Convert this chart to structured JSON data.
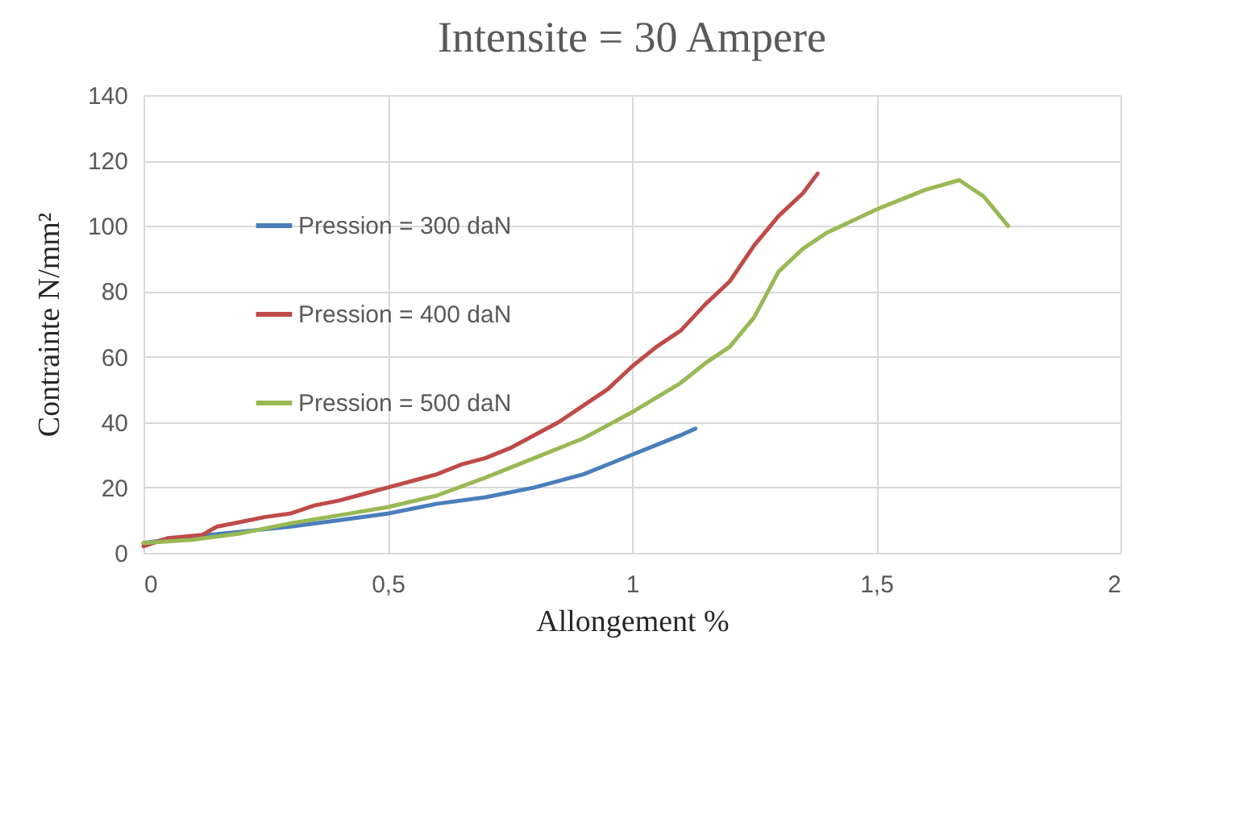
{
  "chart_data": {
    "type": "line",
    "title": "Intensite = 30 Ampere",
    "xlabel": "Allongement %",
    "ylabel": "Contrainte N/mm²",
    "xlim": [
      0,
      2
    ],
    "xticks": [
      0,
      {
        "value": 0.5,
        "label": "0,5"
      },
      1,
      {
        "value": 1.5,
        "label": "1,5"
      },
      2
    ],
    "ylim": [
      0,
      140
    ],
    "yticks": [
      0,
      20,
      40,
      60,
      80,
      100,
      120,
      140
    ],
    "grid": true,
    "legend": "top left",
    "marker": "none",
    "line_style": "solid",
    "series": [
      {
        "name": "Pression = 300 daN",
        "color": "#4a7ebb",
        "x": [
          0,
          0.1,
          0.2,
          0.3,
          0.4,
          0.5,
          0.6,
          0.7,
          0.8,
          0.9,
          0.95,
          1.0,
          1.05,
          1.1,
          1.13
        ],
        "values": [
          3,
          5,
          6.5,
          8,
          10,
          12,
          15,
          17,
          20,
          24,
          27,
          30,
          33,
          36,
          38
        ]
      },
      {
        "name": "Pression = 400 daN",
        "color": "#be4b48",
        "x": [
          0,
          0.05,
          0.12,
          0.15,
          0.2,
          0.25,
          0.3,
          0.35,
          0.4,
          0.45,
          0.5,
          0.55,
          0.6,
          0.65,
          0.7,
          0.75,
          0.8,
          0.85,
          0.9,
          0.95,
          1.0,
          1.05,
          1.1,
          1.15,
          1.2,
          1.25,
          1.3,
          1.35,
          1.38
        ],
        "values": [
          2,
          4.5,
          5.5,
          8,
          9.5,
          11,
          12,
          14.5,
          16,
          18,
          20,
          22,
          24,
          27,
          29,
          32,
          36,
          40,
          45,
          50,
          57,
          63,
          68,
          76,
          83,
          94,
          103,
          110,
          116
        ]
      },
      {
        "name": "Pression = 500 daN",
        "color": "#98b954",
        "x": [
          0,
          0.1,
          0.2,
          0.3,
          0.4,
          0.5,
          0.6,
          0.7,
          0.8,
          0.9,
          1.0,
          1.1,
          1.15,
          1.2,
          1.25,
          1.3,
          1.35,
          1.4,
          1.5,
          1.6,
          1.67,
          1.72,
          1.77
        ],
        "values": [
          3,
          4,
          6,
          9,
          11.5,
          14,
          17.5,
          23,
          29,
          35,
          43,
          52,
          58,
          63,
          72,
          86,
          93,
          98,
          105,
          111,
          114,
          109,
          100
        ]
      }
    ]
  }
}
